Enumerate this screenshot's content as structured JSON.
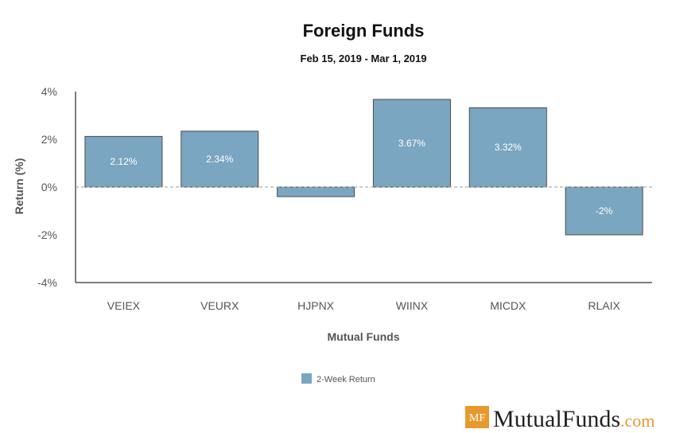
{
  "chart_data": {
    "type": "bar",
    "title": "Foreign Funds",
    "subtitle": "Feb 15, 2019 - Mar 1, 2019",
    "xlabel": "Mutual Funds",
    "ylabel": "Return (%)",
    "ylim": [
      -4,
      4
    ],
    "y_ticks": [
      "4%",
      "2%",
      "0%",
      "-2%",
      "-4%"
    ],
    "y_tick_values": [
      4,
      2,
      0,
      -2,
      -4
    ],
    "categories": [
      "VEIEX",
      "VEURX",
      "HJPNX",
      "WIINX",
      "MICDX",
      "RLAIX"
    ],
    "series": [
      {
        "name": "2-Week Return",
        "values": [
          2.12,
          2.34,
          -0.4,
          3.67,
          3.32,
          -2
        ],
        "labels": [
          "2.12%",
          "2.34%",
          "",
          "3.67%",
          "3.32%",
          "-2%"
        ],
        "color": "#7ba6c2"
      }
    ],
    "grid": false,
    "zero_line": "dashed",
    "legend": "bottom-center"
  },
  "branding": {
    "badge": "MF",
    "name": "MutualFunds",
    "suffix": ".com",
    "badge_color": "#e69a2e"
  }
}
